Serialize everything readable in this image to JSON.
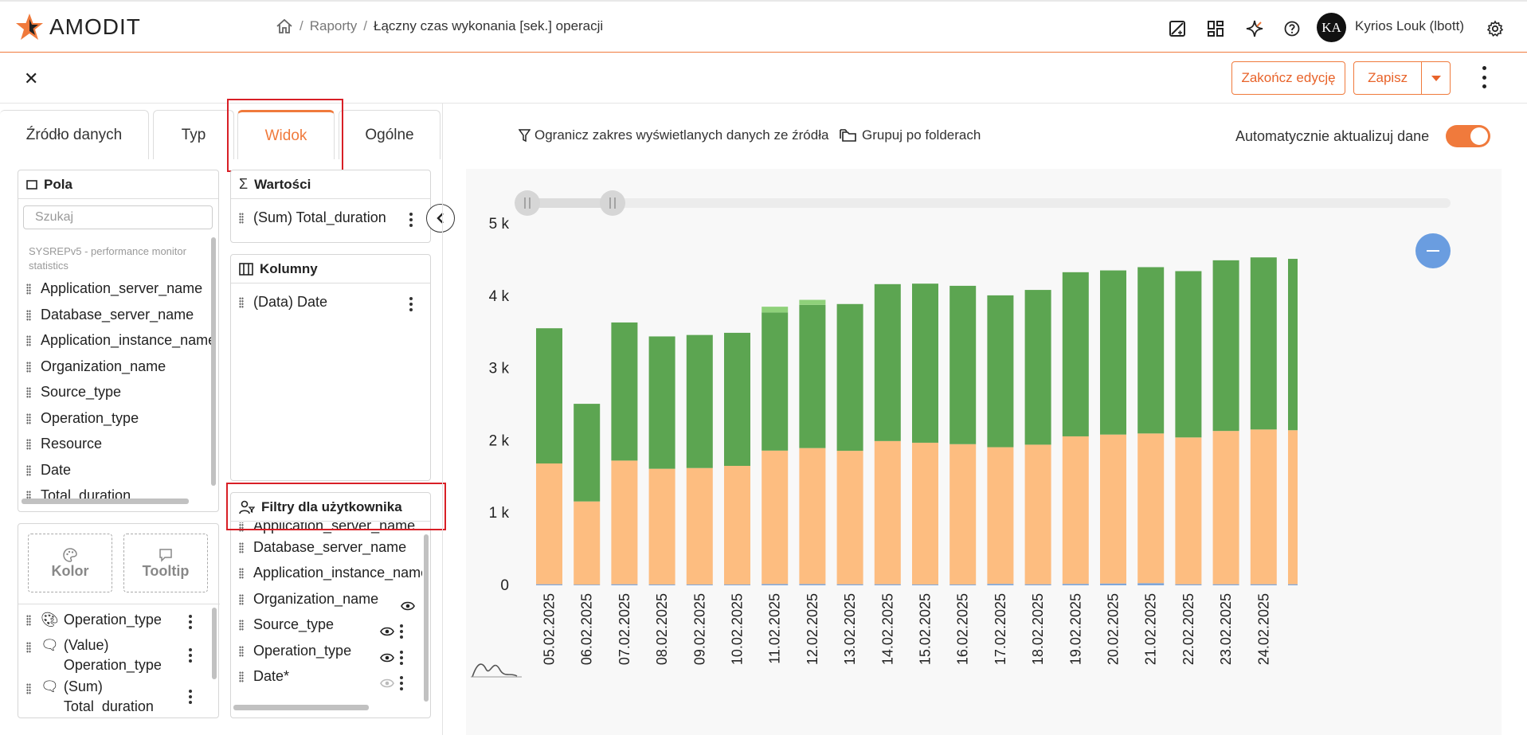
{
  "app": {
    "brand": "AMODIT"
  },
  "breadcrumb": {
    "reports": "Raporty",
    "current": "Łączny czas wykonania [sek.] operacji"
  },
  "user": {
    "initials": "KA",
    "name": "Kyrios Louk (lbott)"
  },
  "toolbar": {
    "finish_label": "Zakończ edycję",
    "save_label": "Zapisz"
  },
  "tabs": [
    {
      "label": "Źródło danych"
    },
    {
      "label": "Typ"
    },
    {
      "label": "Widok"
    },
    {
      "label": "Ogólne"
    }
  ],
  "fields_panel": {
    "title": "Pola",
    "search_placeholder": "Szukaj",
    "source": "SYSREPv5 - performance monitor statistics",
    "items": [
      "Application_server_name",
      "Database_server_name",
      "Application_instance_name",
      "Organization_name",
      "Source_type",
      "Operation_type",
      "Resource",
      "Date",
      "Total_duration"
    ]
  },
  "values_panel": {
    "title": "Wartości",
    "items": [
      "(Sum) Total_duration"
    ]
  },
  "columns_panel": {
    "title": "Kolumny",
    "items": [
      "(Data) Date"
    ]
  },
  "filters_panel": {
    "title": "Filtry dla użytkownika",
    "items": [
      "Application_server_name",
      "Database_server_name",
      "Application_instance_name",
      "Organization_name",
      "Source_type",
      "Operation_type",
      "Date*"
    ]
  },
  "marks": {
    "color_label": "Kolor",
    "tooltip_label": "Tooltip",
    "items": [
      "Operation_type",
      "(Value) Operation_type",
      "(Sum) Total_duration"
    ]
  },
  "options": {
    "limit_label": "Ogranicz zakres wyświetlanych danych ze źródła",
    "group_label": "Grupuj po folderach",
    "auto_label": "Automatycznie aktualizuj dane",
    "auto_on": true
  },
  "colors": {
    "accent": "#f07a3c",
    "highlight": "#d81f26",
    "series_a": "#fdbd80",
    "series_b": "#5ca551",
    "series_c": "#8fd17a",
    "series_d": "#7fa6d9"
  },
  "chart_data": {
    "type": "bar",
    "stacked": true,
    "categories": [
      "05.02.2025",
      "06.02.2025",
      "07.02.2025",
      "08.02.2025",
      "09.02.2025",
      "10.02.2025",
      "11.02.2025",
      "12.02.2025",
      "13.02.2025",
      "14.02.2025",
      "15.02.2025",
      "16.02.2025",
      "17.02.2025",
      "18.02.2025",
      "19.02.2025",
      "20.02.2025",
      "21.02.2025",
      "22.02.2025",
      "23.02.2025",
      "24.02.2025",
      ""
    ],
    "series": [
      {
        "color": "#7fa6d9",
        "values": [
          15,
          10,
          15,
          12,
          12,
          12,
          18,
          18,
          15,
          15,
          12,
          12,
          20,
          15,
          20,
          25,
          30,
          15,
          15,
          15,
          15
        ]
      },
      {
        "color": "#fdbd80",
        "values": [
          1670,
          1150,
          1710,
          1600,
          1610,
          1640,
          1845,
          1880,
          1845,
          1980,
          1960,
          1940,
          1890,
          1930,
          2040,
          2060,
          2070,
          2030,
          2120,
          2140,
          2130
        ]
      },
      {
        "color": "#5ca551",
        "values": [
          1870,
          1350,
          1910,
          1830,
          1840,
          1840,
          1910,
          1980,
          2030,
          2170,
          2200,
          2190,
          2100,
          2140,
          2270,
          2270,
          2300,
          2300,
          2360,
          2380,
          2370
        ]
      },
      {
        "color": "#8fd17a",
        "values": [
          0,
          0,
          0,
          0,
          0,
          0,
          80,
          70,
          0,
          0,
          0,
          0,
          0,
          0,
          0,
          0,
          0,
          0,
          0,
          0,
          0
        ]
      }
    ],
    "y_ticks": [
      "0",
      "1 k",
      "2 k",
      "3 k",
      "4 k",
      "5 k"
    ],
    "ylim": [
      0,
      5000
    ],
    "grid": false
  }
}
